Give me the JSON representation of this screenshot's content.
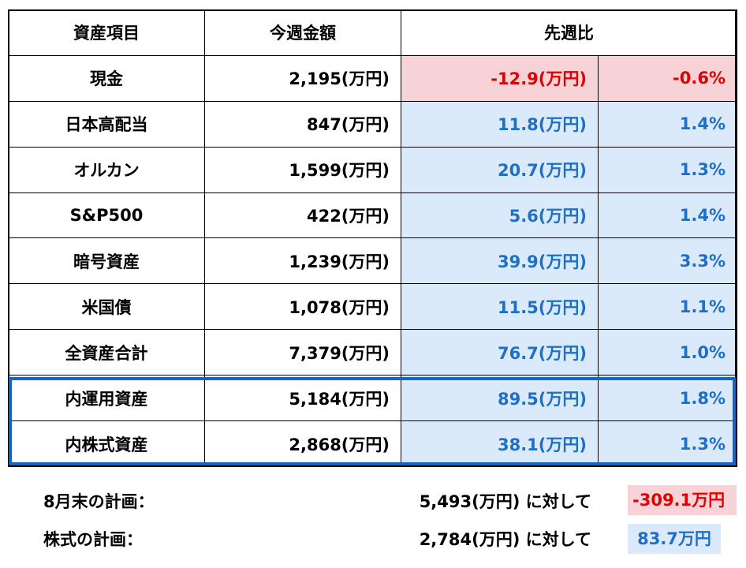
{
  "header": {
    "item": "資産項目",
    "amount": "今週金額",
    "change": "先週比"
  },
  "rows": [
    {
      "name": "現金",
      "amount": "2,195(万円)",
      "diff": "-12.9(万円)",
      "pct": "-0.6%",
      "sign": "neg"
    },
    {
      "name": "日本高配当",
      "amount": "847(万円)",
      "diff": "11.8(万円)",
      "pct": "1.4%",
      "sign": "pos"
    },
    {
      "name": "オルカン",
      "amount": "1,599(万円)",
      "diff": "20.7(万円)",
      "pct": "1.3%",
      "sign": "pos"
    },
    {
      "name": "S&P500",
      "amount": "422(万円)",
      "diff": "5.6(万円)",
      "pct": "1.4%",
      "sign": "pos"
    },
    {
      "name": "暗号資産",
      "amount": "1,239(万円)",
      "diff": "39.9(万円)",
      "pct": "3.3%",
      "sign": "pos"
    },
    {
      "name": "米国債",
      "amount": "1,078(万円)",
      "diff": "11.5(万円)",
      "pct": "1.1%",
      "sign": "pos"
    },
    {
      "name": "全資産合計",
      "amount": "7,379(万円)",
      "diff": "76.7(万円)",
      "pct": "1.0%",
      "sign": "pos"
    },
    {
      "name": "内運用資産",
      "amount": "5,184(万円)",
      "diff": "89.5(万円)",
      "pct": "1.8%",
      "sign": "pos"
    },
    {
      "name": "内株式資産",
      "amount": "2,868(万円)",
      "diff": "38.1(万円)",
      "pct": "1.3%",
      "sign": "pos"
    }
  ],
  "plans": [
    {
      "label": "8月末の計画：",
      "amount": "5,493(万円)  に対して",
      "diff": "-309.1万円",
      "sign": "neg"
    },
    {
      "label": "株式の計画：",
      "amount": "2,784(万円)  に対して",
      "diff": "83.7万円",
      "sign": "pos"
    }
  ],
  "colors": {
    "positive_bg": "#dbeafb",
    "positive_text": "#1f6fc4",
    "negative_bg": "#f7d3d7",
    "negative_text": "#e00000",
    "highlight_border": "#1565c0"
  }
}
